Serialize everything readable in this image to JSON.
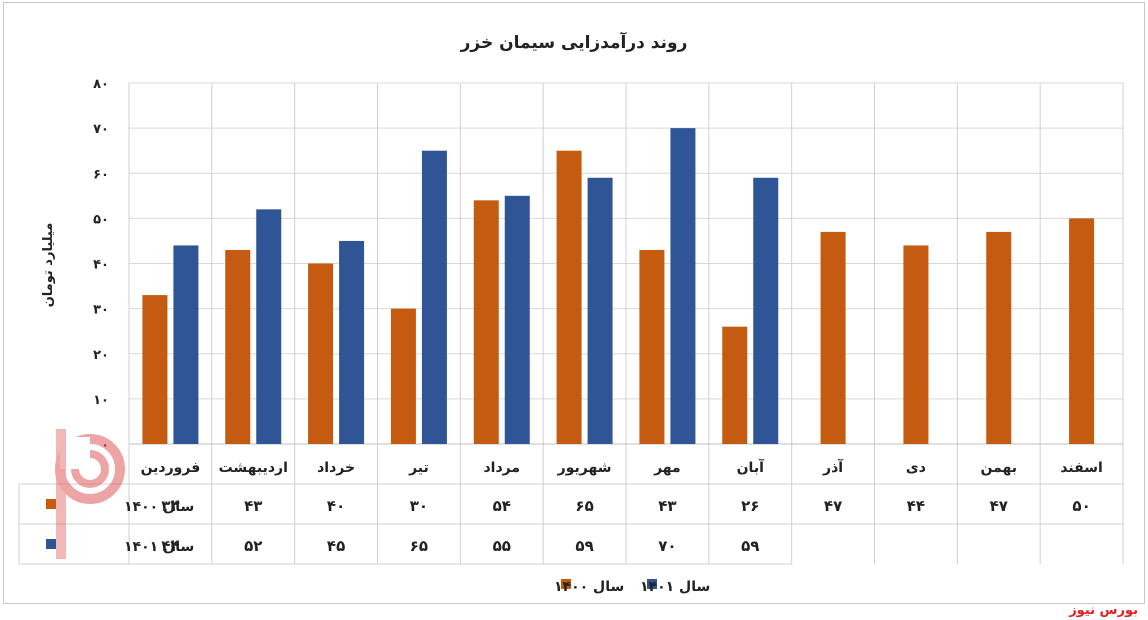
{
  "source_label": "بورس نیوز",
  "chart_data": {
    "type": "bar",
    "title": "روند درآمدزایی سیمان خزر",
    "ylabel": "میلیارد تومان",
    "ylim": [
      0,
      80
    ],
    "yticks": [
      "۰",
      "۱۰",
      "۲۰",
      "۳۰",
      "۴۰",
      "۵۰",
      "۶۰",
      "۷۰",
      "۸۰"
    ],
    "categories": [
      "فروردین",
      "اردیبهشت",
      "خرداد",
      "تیر",
      "مرداد",
      "شهریور",
      "مهر",
      "آبان",
      "آذر",
      "دی",
      "بهمن",
      "اسفند"
    ],
    "series": [
      {
        "name": "سال ۱۴۰۰",
        "color": "#c55a11",
        "values": [
          33,
          43,
          40,
          30,
          54,
          65,
          43,
          26,
          47,
          44,
          47,
          50
        ],
        "labels": [
          "۳۳",
          "۴۳",
          "۴۰",
          "۳۰",
          "۵۴",
          "۶۵",
          "۴۳",
          "۲۶",
          "۴۷",
          "۴۴",
          "۴۷",
          "۵۰"
        ]
      },
      {
        "name": "سال ۱۴۰۱",
        "color": "#2f5597",
        "values": [
          44,
          52,
          45,
          65,
          55,
          59,
          70,
          59,
          null,
          null,
          null,
          null
        ],
        "labels": [
          "۴۴",
          "۵۲",
          "۴۵",
          "۶۵",
          "۵۵",
          "۵۹",
          "۷۰",
          "۵۹",
          "",
          "",
          "",
          ""
        ]
      }
    ],
    "grid": true,
    "legend": "bottom"
  }
}
